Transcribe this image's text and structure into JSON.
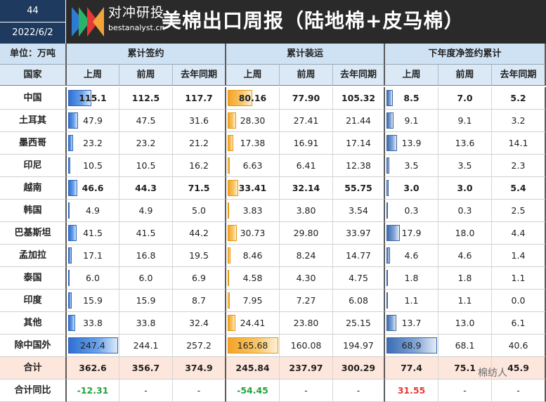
{
  "header": {
    "issue": "44",
    "date": "2022/6/2",
    "brand_cn": "对冲研投",
    "brand_en": "bestanalyst.cn",
    "title": "美棉出口周报（陆地棉+皮马棉）"
  },
  "unit_label": "单位：万吨",
  "country_label": "国家",
  "groups": [
    "累计签约",
    "累计装运",
    "下年度净签约累计"
  ],
  "subheaders": [
    "上周",
    "前周",
    "去年同期"
  ],
  "rows": [
    {
      "country": "中国",
      "bold": true,
      "v": [
        "115.1",
        "112.5",
        "117.7",
        "80.16",
        "77.90",
        "105.32",
        "8.5",
        "7.0",
        "5.2"
      ]
    },
    {
      "country": "土耳其",
      "bold": false,
      "v": [
        "47.9",
        "47.5",
        "31.6",
        "28.30",
        "27.41",
        "21.44",
        "9.1",
        "9.1",
        "3.2"
      ]
    },
    {
      "country": "墨西哥",
      "bold": false,
      "v": [
        "23.2",
        "23.2",
        "21.2",
        "17.38",
        "16.91",
        "17.14",
        "13.9",
        "13.6",
        "14.1"
      ]
    },
    {
      "country": "印尼",
      "bold": false,
      "v": [
        "10.5",
        "10.5",
        "16.2",
        "6.63",
        "6.41",
        "12.38",
        "3.5",
        "3.5",
        "2.3"
      ]
    },
    {
      "country": "越南",
      "bold": true,
      "v": [
        "46.6",
        "44.3",
        "71.5",
        "33.41",
        "32.14",
        "55.75",
        "3.0",
        "3.0",
        "5.4"
      ]
    },
    {
      "country": "韩国",
      "bold": false,
      "v": [
        "4.9",
        "4.9",
        "5.0",
        "3.83",
        "3.80",
        "3.54",
        "0.3",
        "0.3",
        "2.5"
      ]
    },
    {
      "country": "巴基斯坦",
      "bold": false,
      "v": [
        "41.5",
        "41.5",
        "44.2",
        "30.73",
        "29.80",
        "33.97",
        "17.9",
        "18.0",
        "4.4"
      ]
    },
    {
      "country": "孟加拉",
      "bold": false,
      "v": [
        "17.1",
        "16.8",
        "19.5",
        "8.46",
        "8.24",
        "14.77",
        "4.6",
        "4.6",
        "1.4"
      ]
    },
    {
      "country": "泰国",
      "bold": false,
      "v": [
        "6.0",
        "6.0",
        "6.9",
        "4.58",
        "4.30",
        "4.75",
        "1.8",
        "1.8",
        "1.1"
      ]
    },
    {
      "country": "印度",
      "bold": false,
      "v": [
        "15.9",
        "15.9",
        "8.7",
        "7.95",
        "7.27",
        "6.08",
        "1.1",
        "1.1",
        "0.0"
      ]
    },
    {
      "country": "其他",
      "bold": false,
      "v": [
        "33.8",
        "33.8",
        "32.4",
        "24.41",
        "23.80",
        "25.15",
        "13.7",
        "13.0",
        "6.1"
      ]
    },
    {
      "country": "除中国外",
      "bold": false,
      "v": [
        "247.4",
        "244.1",
        "257.2",
        "165.68",
        "160.08",
        "194.97",
        "68.9",
        "68.1",
        "40.6"
      ]
    }
  ],
  "total": {
    "country": "合计",
    "v": [
      "362.6",
      "356.7",
      "374.9",
      "245.84",
      "237.97",
      "300.29",
      "77.4",
      "75.1",
      "45.9"
    ]
  },
  "yoy": {
    "country": "合计同比",
    "v": [
      "-12.31",
      "-",
      "-",
      "-54.45",
      "-",
      "-",
      "31.55",
      "-",
      "-"
    ]
  },
  "bar_fractions": {
    "sign": [
      0.465,
      0.194,
      0.094,
      0.042,
      0.188,
      0.02,
      0.168,
      0.069,
      0.024,
      0.064,
      0.137,
      1.0
    ],
    "ship": [
      0.484,
      0.171,
      0.105,
      0.04,
      0.202,
      0.023,
      0.185,
      0.051,
      0.028,
      0.048,
      0.147,
      1.0
    ],
    "next": [
      0.123,
      0.132,
      0.202,
      0.051,
      0.044,
      0.004,
      0.26,
      0.067,
      0.026,
      0.016,
      0.199,
      1.0
    ]
  },
  "watermark": "棉纺人"
}
